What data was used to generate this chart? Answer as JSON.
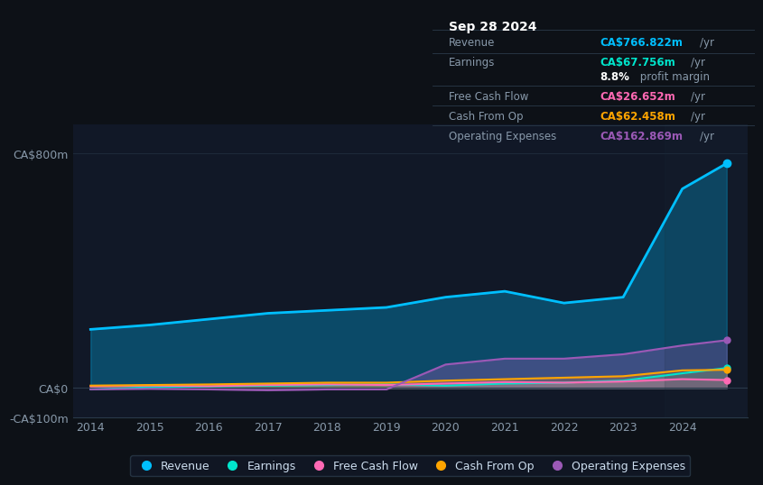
{
  "bg_color": "#0d1117",
  "plot_bg_color": "#111827",
  "grid_color": "#1e2a3a",
  "title_box": {
    "date": "Sep 28 2024",
    "rows": [
      {
        "label": "Revenue",
        "value": "CA$766.822m",
        "unit": "/yr",
        "color": "#00bfff"
      },
      {
        "label": "Earnings",
        "value": "CA$67.756m",
        "unit": "/yr",
        "color": "#00e5cc"
      },
      {
        "label": "",
        "value": "8.8%",
        "unit": " profit margin",
        "color": "#ffffff"
      },
      {
        "label": "Free Cash Flow",
        "value": "CA$26.652m",
        "unit": "/yr",
        "color": "#ff69b4"
      },
      {
        "label": "Cash From Op",
        "value": "CA$62.458m",
        "unit": "/yr",
        "color": "#ffa500"
      },
      {
        "label": "Operating Expenses",
        "value": "CA$162.869m",
        "unit": "/yr",
        "color": "#9b59b6"
      }
    ]
  },
  "years": [
    2014,
    2015,
    2016,
    2017,
    2018,
    2019,
    2020,
    2021,
    2022,
    2023,
    2024,
    2024.75
  ],
  "revenue": [
    200,
    215,
    235,
    255,
    265,
    275,
    310,
    330,
    290,
    310,
    680,
    767
  ],
  "earnings": [
    -5,
    2,
    5,
    8,
    10,
    12,
    8,
    15,
    18,
    25,
    50,
    68
  ],
  "free_cash": [
    5,
    8,
    6,
    10,
    12,
    10,
    15,
    20,
    18,
    22,
    30,
    27
  ],
  "cash_from_op": [
    8,
    10,
    12,
    15,
    18,
    18,
    25,
    30,
    35,
    40,
    60,
    62
  ],
  "op_expenses": [
    -5,
    -3,
    -5,
    -8,
    -5,
    -5,
    80,
    100,
    100,
    115,
    145,
    163
  ],
  "ylim": [
    -100,
    900
  ],
  "yticks_labels": [
    "CA$800m",
    "CA$0",
    "-CA$100m"
  ],
  "yticks_values": [
    800,
    0,
    -100
  ],
  "x_labels": [
    "2014",
    "2015",
    "2016",
    "2017",
    "2018",
    "2019",
    "2020",
    "2021",
    "2022",
    "2023",
    "2024"
  ],
  "revenue_color": "#00bfff",
  "earnings_color": "#00e5cc",
  "free_cash_color": "#ff69b4",
  "cash_from_op_color": "#ffa500",
  "op_expenses_color": "#9b59b6",
  "legend_items": [
    "Revenue",
    "Earnings",
    "Free Cash Flow",
    "Cash From Op",
    "Operating Expenses"
  ]
}
